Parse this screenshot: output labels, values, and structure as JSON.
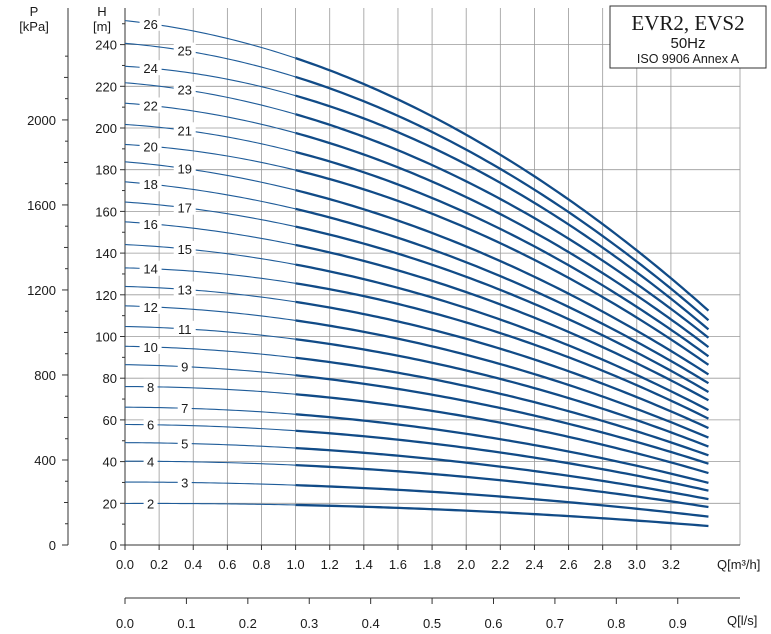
{
  "chart_data": {
    "type": "line",
    "title_box": {
      "line1": "EVR2, EVS2",
      "line2": "50Hz",
      "line3": "ISO 9906 Annex A"
    },
    "left_axis": {
      "label_top": "P",
      "label_unit": "[kPa]",
      "ticks": [
        0,
        400,
        800,
        1200,
        1600,
        2000
      ]
    },
    "y_axis": {
      "label_top": "H",
      "label_unit": "[m]",
      "ylim": [
        0,
        250
      ],
      "ticks": [
        0,
        20,
        40,
        60,
        80,
        100,
        120,
        140,
        160,
        180,
        200,
        220,
        240
      ]
    },
    "x_axis": {
      "label": "Q[m³/h]",
      "xlim": [
        0,
        3.6
      ],
      "ticks": [
        0.0,
        0.2,
        0.4,
        0.6,
        0.8,
        1.0,
        1.2,
        1.4,
        1.6,
        1.8,
        2.0,
        2.2,
        2.4,
        2.6,
        2.8,
        3.0,
        3.2
      ],
      "tick_labels": [
        "0.0",
        "0.2",
        "0.4",
        "0.6",
        "0.8",
        "1.0",
        "1.2",
        "1.4",
        "1.6",
        "1.8",
        "2.0",
        "2.2",
        "2.4",
        "2.6",
        "2.8",
        "3.0",
        "3.2"
      ]
    },
    "x2_axis": {
      "label": "Q[l/s]",
      "ticks": [
        0.0,
        0.1,
        0.2,
        0.3,
        0.4,
        0.5,
        0.6,
        0.7,
        0.8,
        0.9
      ],
      "tick_labels": [
        "0.0",
        "0.1",
        "0.2",
        "0.3",
        "0.4",
        "0.5",
        "0.6",
        "0.7",
        "0.8",
        "0.9"
      ]
    },
    "grid": true,
    "q_end": 3.42,
    "q_bold_start": 1.0,
    "series": [
      {
        "name": "2",
        "values": [
          [
            0,
            19.9
          ],
          [
            1.0,
            19.2
          ],
          [
            3.42,
            9.1
          ]
        ]
      },
      {
        "name": "3",
        "values": [
          [
            0,
            30.2
          ],
          [
            1.0,
            28.7
          ],
          [
            3.42,
            13.6
          ]
        ]
      },
      {
        "name": "4",
        "values": [
          [
            0,
            40.2
          ],
          [
            1.0,
            38.3
          ],
          [
            3.42,
            18.2
          ]
        ]
      },
      {
        "name": "5",
        "values": [
          [
            0,
            49.1
          ],
          [
            1.0,
            46.5
          ],
          [
            3.42,
            22.0
          ]
        ]
      },
      {
        "name": "6",
        "values": [
          [
            0,
            57.8
          ],
          [
            1.0,
            54.8
          ],
          [
            3.42,
            26.1
          ]
        ]
      },
      {
        "name": "7",
        "values": [
          [
            0,
            66.1
          ],
          [
            1.0,
            62.7
          ],
          [
            3.42,
            29.8
          ]
        ]
      },
      {
        "name": "8",
        "values": [
          [
            0,
            76.0
          ],
          [
            1.0,
            72.3
          ],
          [
            3.42,
            34.5
          ]
        ]
      },
      {
        "name": "9",
        "values": [
          [
            0,
            86.5
          ],
          [
            1.0,
            81.4
          ],
          [
            3.42,
            39.0
          ]
        ]
      },
      {
        "name": "10",
        "values": [
          [
            0,
            95.3
          ],
          [
            1.0,
            89.8
          ],
          [
            3.42,
            43.0
          ]
        ]
      },
      {
        "name": "11",
        "values": [
          [
            0,
            104.8
          ],
          [
            1.0,
            98.7
          ],
          [
            3.42,
            47.2
          ]
        ]
      },
      {
        "name": "12",
        "values": [
          [
            0,
            114.7
          ],
          [
            1.0,
            107.7
          ],
          [
            3.42,
            51.5
          ]
        ]
      },
      {
        "name": "13",
        "values": [
          [
            0,
            124.0
          ],
          [
            1.0,
            116.6
          ],
          [
            3.42,
            56.1
          ]
        ]
      },
      {
        "name": "14",
        "values": [
          [
            0,
            132.9
          ],
          [
            1.0,
            125.5
          ],
          [
            3.42,
            60.6
          ]
        ]
      },
      {
        "name": "15",
        "values": [
          [
            0,
            144.1
          ],
          [
            1.0,
            134.5
          ],
          [
            3.42,
            64.7
          ]
        ]
      },
      {
        "name": "16",
        "values": [
          [
            0,
            155.0
          ],
          [
            1.0,
            143.9
          ],
          [
            3.42,
            69.4
          ]
        ]
      },
      {
        "name": "17",
        "values": [
          [
            0,
            164.5
          ],
          [
            1.0,
            152.7
          ],
          [
            3.42,
            73.4
          ]
        ]
      },
      {
        "name": "18",
        "values": [
          [
            0,
            174.2
          ],
          [
            1.0,
            161.2
          ],
          [
            3.42,
            77.6
          ]
        ]
      },
      {
        "name": "19",
        "values": [
          [
            0,
            183.8
          ],
          [
            1.0,
            170.2
          ],
          [
            3.42,
            81.8
          ]
        ]
      },
      {
        "name": "20",
        "values": [
          [
            0,
            192.1
          ],
          [
            1.0,
            179.8
          ],
          [
            3.42,
            86.4
          ]
        ]
      },
      {
        "name": "21",
        "values": [
          [
            0,
            201.7
          ],
          [
            1.0,
            188.5
          ],
          [
            3.42,
            90.5
          ]
        ]
      },
      {
        "name": "22",
        "values": [
          [
            0,
            211.9
          ],
          [
            1.0,
            197.6
          ],
          [
            3.42,
            94.9
          ]
        ]
      },
      {
        "name": "23",
        "values": [
          [
            0,
            221.7
          ],
          [
            1.0,
            206.6
          ],
          [
            3.42,
            99.4
          ]
        ]
      },
      {
        "name": "24",
        "values": [
          [
            0,
            229.6
          ],
          [
            1.0,
            215.5
          ],
          [
            3.42,
            103.4
          ]
        ]
      },
      {
        "name": "25",
        "values": [
          [
            0,
            240.6
          ],
          [
            1.0,
            224.5
          ],
          [
            3.42,
            107.8
          ]
        ]
      },
      {
        "name": "26",
        "values": [
          [
            0,
            251.5
          ],
          [
            1.0,
            233.5
          ],
          [
            3.42,
            112.4
          ]
        ]
      }
    ],
    "stage_label_q": [
      0.15,
      0.35
    ]
  }
}
